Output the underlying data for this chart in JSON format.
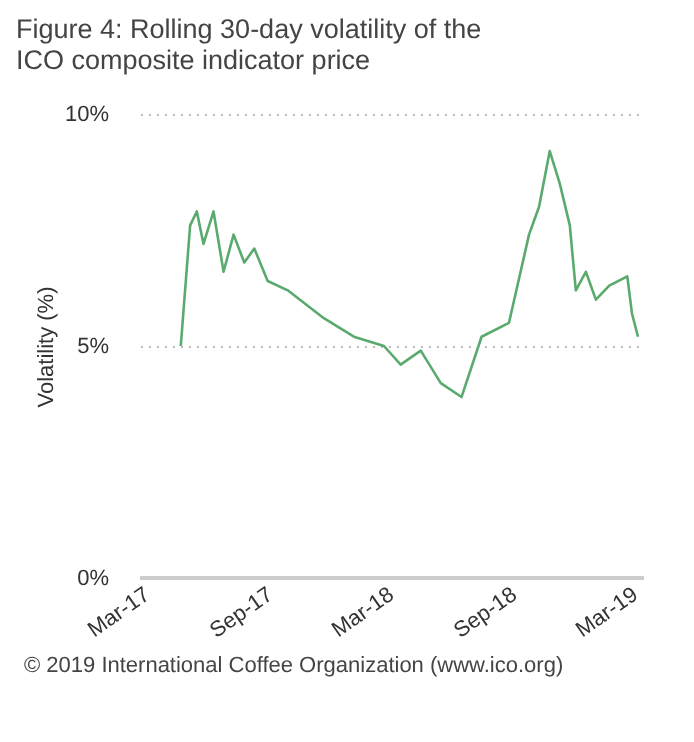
{
  "chart_data": {
    "type": "line",
    "title": "Figure 4:  Rolling 30-day volatility of the ICO composite indicator price",
    "ylabel": "Volatility (%)",
    "x": [
      "2017-05-01",
      "2017-05-15",
      "2017-05-25",
      "2017-06-04",
      "2017-06-19",
      "2017-07-04",
      "2017-07-19",
      "2017-08-04",
      "2017-08-19",
      "2017-09-08",
      "2017-10-08",
      "2017-12-01",
      "2018-01-15",
      "2018-03-01",
      "2018-03-26",
      "2018-04-25",
      "2018-05-25",
      "2018-06-25",
      "2018-07-25",
      "2018-09-04",
      "2018-10-04",
      "2018-10-19",
      "2018-11-04",
      "2018-11-19",
      "2018-12-04",
      "2018-12-13",
      "2018-12-28",
      "2019-01-12",
      "2019-02-01",
      "2019-02-28",
      "2019-03-07",
      "2019-03-16"
    ],
    "series": [
      {
        "color": "#5aaa6e",
        "values": [
          5.0,
          7.6,
          7.9,
          7.2,
          7.9,
          6.6,
          7.4,
          6.8,
          7.1,
          6.4,
          6.2,
          5.6,
          5.2,
          5.0,
          4.6,
          4.9,
          4.2,
          3.9,
          5.2,
          5.5,
          7.4,
          8.0,
          9.2,
          8.5,
          7.6,
          6.2,
          6.6,
          6.0,
          6.3,
          6.5,
          5.7,
          5.2
        ]
      }
    ],
    "xlim": [
      "2017-03-01",
      "2019-03-25"
    ],
    "xticks": [
      {
        "value": "2017-03-01",
        "label": "Mar-17"
      },
      {
        "value": "2017-09-01",
        "label": "Sep-17"
      },
      {
        "value": "2018-03-01",
        "label": "Mar-18"
      },
      {
        "value": "2018-09-01",
        "label": "Sep-18"
      },
      {
        "value": "2019-03-01",
        "label": "Mar-19"
      }
    ],
    "ylim": [
      0,
      10
    ],
    "yticks": [
      {
        "value": 0,
        "label": "0%"
      },
      {
        "value": 5,
        "label": "5%"
      },
      {
        "value": 10,
        "label": "10%"
      }
    ],
    "grid": "y",
    "line_style": "solid",
    "legend": false,
    "annotations": [
      "© 2019 International Coffee Organization (www.ico.org)"
    ]
  }
}
